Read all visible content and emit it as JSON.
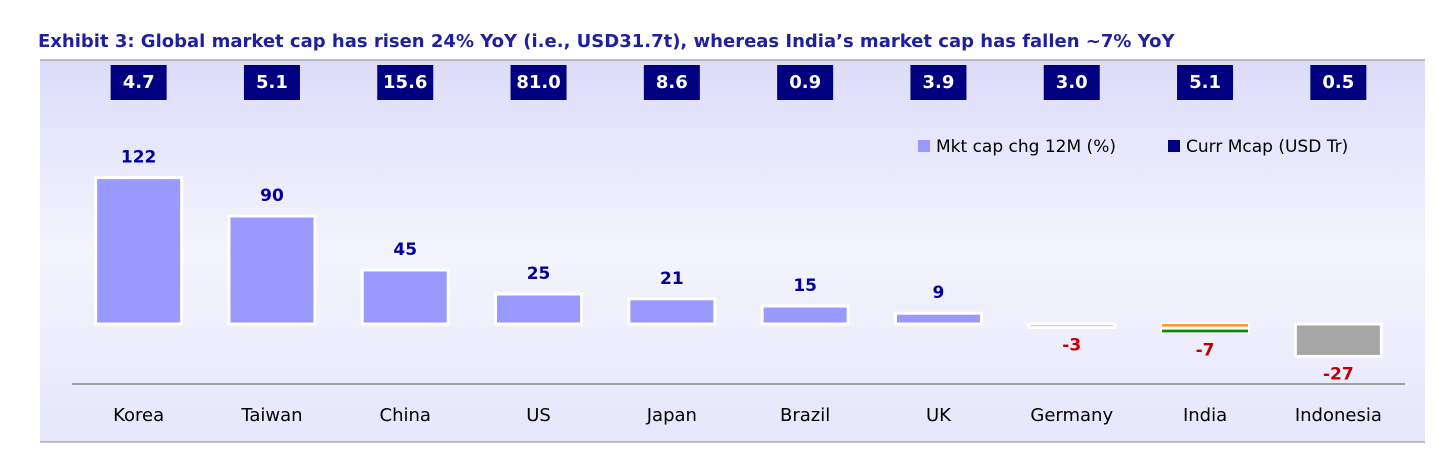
{
  "chart_data": {
    "type": "bar",
    "title": "Exhibit 3: Global market cap has risen 24% YoY (i.e., USD31.7t), whereas India’s market cap has fallen ~7% YoY",
    "categories": [
      "Korea",
      "Taiwan",
      "China",
      "US",
      "Japan",
      "Brazil",
      "UK",
      "Germany",
      "India",
      "Indonesia"
    ],
    "series": [
      {
        "name": "Mkt cap chg 12M (%)",
        "color": "#9999ff",
        "values": [
          122,
          90,
          45,
          25,
          21,
          15,
          9,
          -3,
          -7,
          -27
        ],
        "bar_colors": [
          "#9999ff",
          "#9999ff",
          "#9999ff",
          "#9999ff",
          "#9999ff",
          "#9999ff",
          "#9999ff",
          "#a6a6a6",
          [
            "#ff9933",
            "#ffffff",
            "#138808"
          ],
          "#a6a6a6"
        ]
      },
      {
        "name": "Curr Mcap (USD Tr)",
        "color": "#000080",
        "values": [
          4.7,
          5.1,
          15.6,
          81.0,
          8.6,
          0.9,
          3.9,
          3.0,
          5.1,
          0.5
        ],
        "value_labels": [
          "4.7",
          "5.1",
          "15.6",
          "81.0",
          "8.6",
          "0.9",
          "3.9",
          "3.0",
          "5.1",
          "0.5"
        ]
      }
    ],
    "positive_label_color": "#000099",
    "negative_label_color": "#c00000",
    "ylim": [
      -50,
      130
    ]
  }
}
